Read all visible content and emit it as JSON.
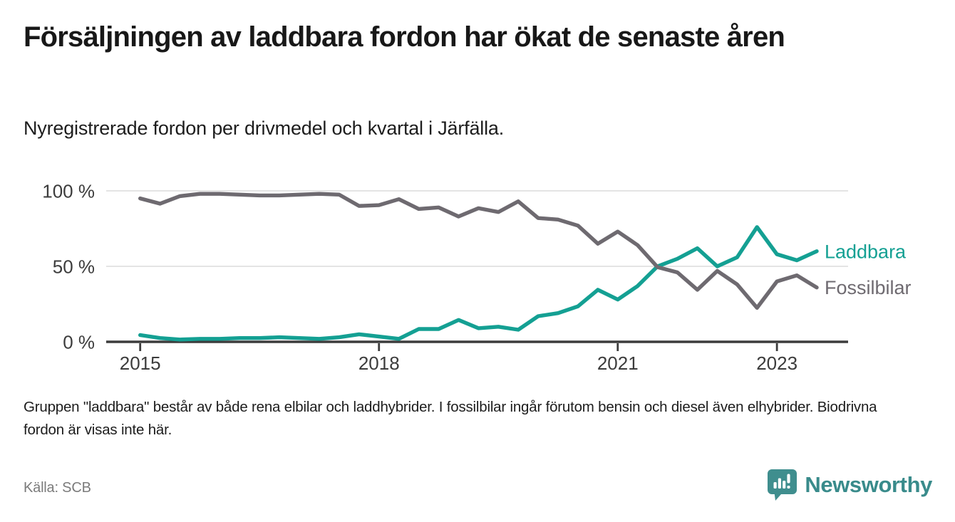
{
  "header": {
    "title": "Försäljningen av laddbara fordon har ökat de senaste åren",
    "subtitle": "Nyregistrerade fordon per drivmedel och kvartal i Järfälla."
  },
  "chart_data": {
    "type": "line",
    "title": "Nyregistrerade fordon per drivmedel och kvartal i Järfälla",
    "x_unit": "quarter",
    "x": [
      "2015-Q1",
      "2015-Q2",
      "2015-Q3",
      "2015-Q4",
      "2016-Q1",
      "2016-Q2",
      "2016-Q3",
      "2016-Q4",
      "2017-Q1",
      "2017-Q2",
      "2017-Q3",
      "2017-Q4",
      "2018-Q1",
      "2018-Q2",
      "2018-Q3",
      "2018-Q4",
      "2019-Q1",
      "2019-Q2",
      "2019-Q3",
      "2019-Q4",
      "2020-Q1",
      "2020-Q2",
      "2020-Q3",
      "2020-Q4",
      "2021-Q1",
      "2021-Q2",
      "2021-Q3",
      "2021-Q4",
      "2022-Q1",
      "2022-Q2",
      "2022-Q3",
      "2022-Q4",
      "2023-Q1",
      "2023-Q2",
      "2023-Q3"
    ],
    "series": [
      {
        "name": "Laddbara",
        "color": "#14a093",
        "values": [
          4.5,
          2.5,
          1.5,
          2,
          2,
          2.5,
          2.5,
          3,
          2.5,
          2,
          3,
          5,
          3.5,
          2,
          8.5,
          8.5,
          14.5,
          9,
          10,
          8,
          17,
          19,
          23.5,
          34.5,
          28,
          37,
          50,
          55,
          62,
          50,
          56,
          76,
          58,
          54,
          60
        ]
      },
      {
        "name": "Fossilbilar",
        "color": "#6e6a70",
        "values": [
          95,
          91.5,
          96.5,
          98,
          98,
          97.5,
          97,
          97,
          97.5,
          98,
          97.5,
          90,
          90.5,
          94.5,
          88,
          89,
          83,
          88.5,
          86,
          93,
          82,
          81,
          77,
          65,
          73,
          64,
          49.5,
          46,
          34.5,
          47,
          38,
          22.5,
          40,
          44,
          36
        ]
      }
    ],
    "ylim": [
      0,
      100
    ],
    "yticks": [
      0,
      50,
      100
    ],
    "ytick_labels": [
      "0 %",
      "50 %",
      "100 %"
    ],
    "xticks": [
      {
        "label": "2015",
        "quarter_index": 0
      },
      {
        "label": "2018",
        "quarter_index": 12
      },
      {
        "label": "2021",
        "quarter_index": 24
      },
      {
        "label": "2023",
        "quarter_index": 32
      }
    ],
    "grid": "horizontal",
    "legend_position": "line-end-labels",
    "colors": {
      "grid": "#dcdcdc",
      "axis": "#3c3c3c",
      "tick_text": "#3c3c3c"
    }
  },
  "footnote": "Gruppen \"laddbara\" består av både rena elbilar och laddhybrider. I fossilbilar ingår förutom bensin och diesel även elhybrider. Biodrivna fordon är visas inte här.",
  "source": {
    "label": "Källa: SCB"
  },
  "branding": {
    "name": "Newsworthy",
    "color": "#398b8b",
    "icon": "newsworthy-chart-pin-icon"
  }
}
